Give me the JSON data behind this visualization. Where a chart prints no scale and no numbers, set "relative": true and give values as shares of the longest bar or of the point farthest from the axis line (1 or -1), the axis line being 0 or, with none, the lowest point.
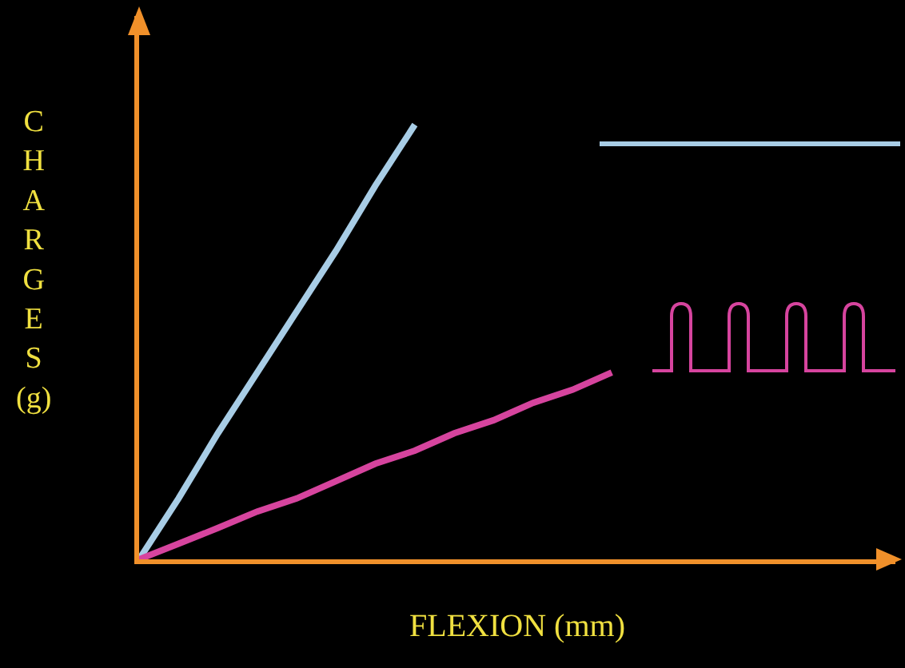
{
  "chart_data": {
    "type": "line",
    "xlabel": "FLEXION (mm)",
    "ylabel": "CHARGES (g)",
    "relative": true,
    "categories": [
      null,
      null,
      null,
      null,
      null,
      null,
      null,
      null,
      null,
      null,
      null,
      null,
      null
    ],
    "series": [
      {
        "color": "#a8cde6",
        "values": [
          0,
          0.14,
          0.29,
          0.43,
          0.57,
          0.71,
          0.86,
          1,
          null,
          null,
          null,
          null,
          null
        ]
      },
      {
        "color": "#d6449e",
        "values": [
          0,
          0.036,
          0.072,
          0.11,
          0.14,
          0.18,
          0.22,
          0.25,
          0.29,
          0.32,
          0.36,
          0.39,
          0.43
        ]
      }
    ],
    "marker": "none",
    "line_style": "solid"
  }
}
